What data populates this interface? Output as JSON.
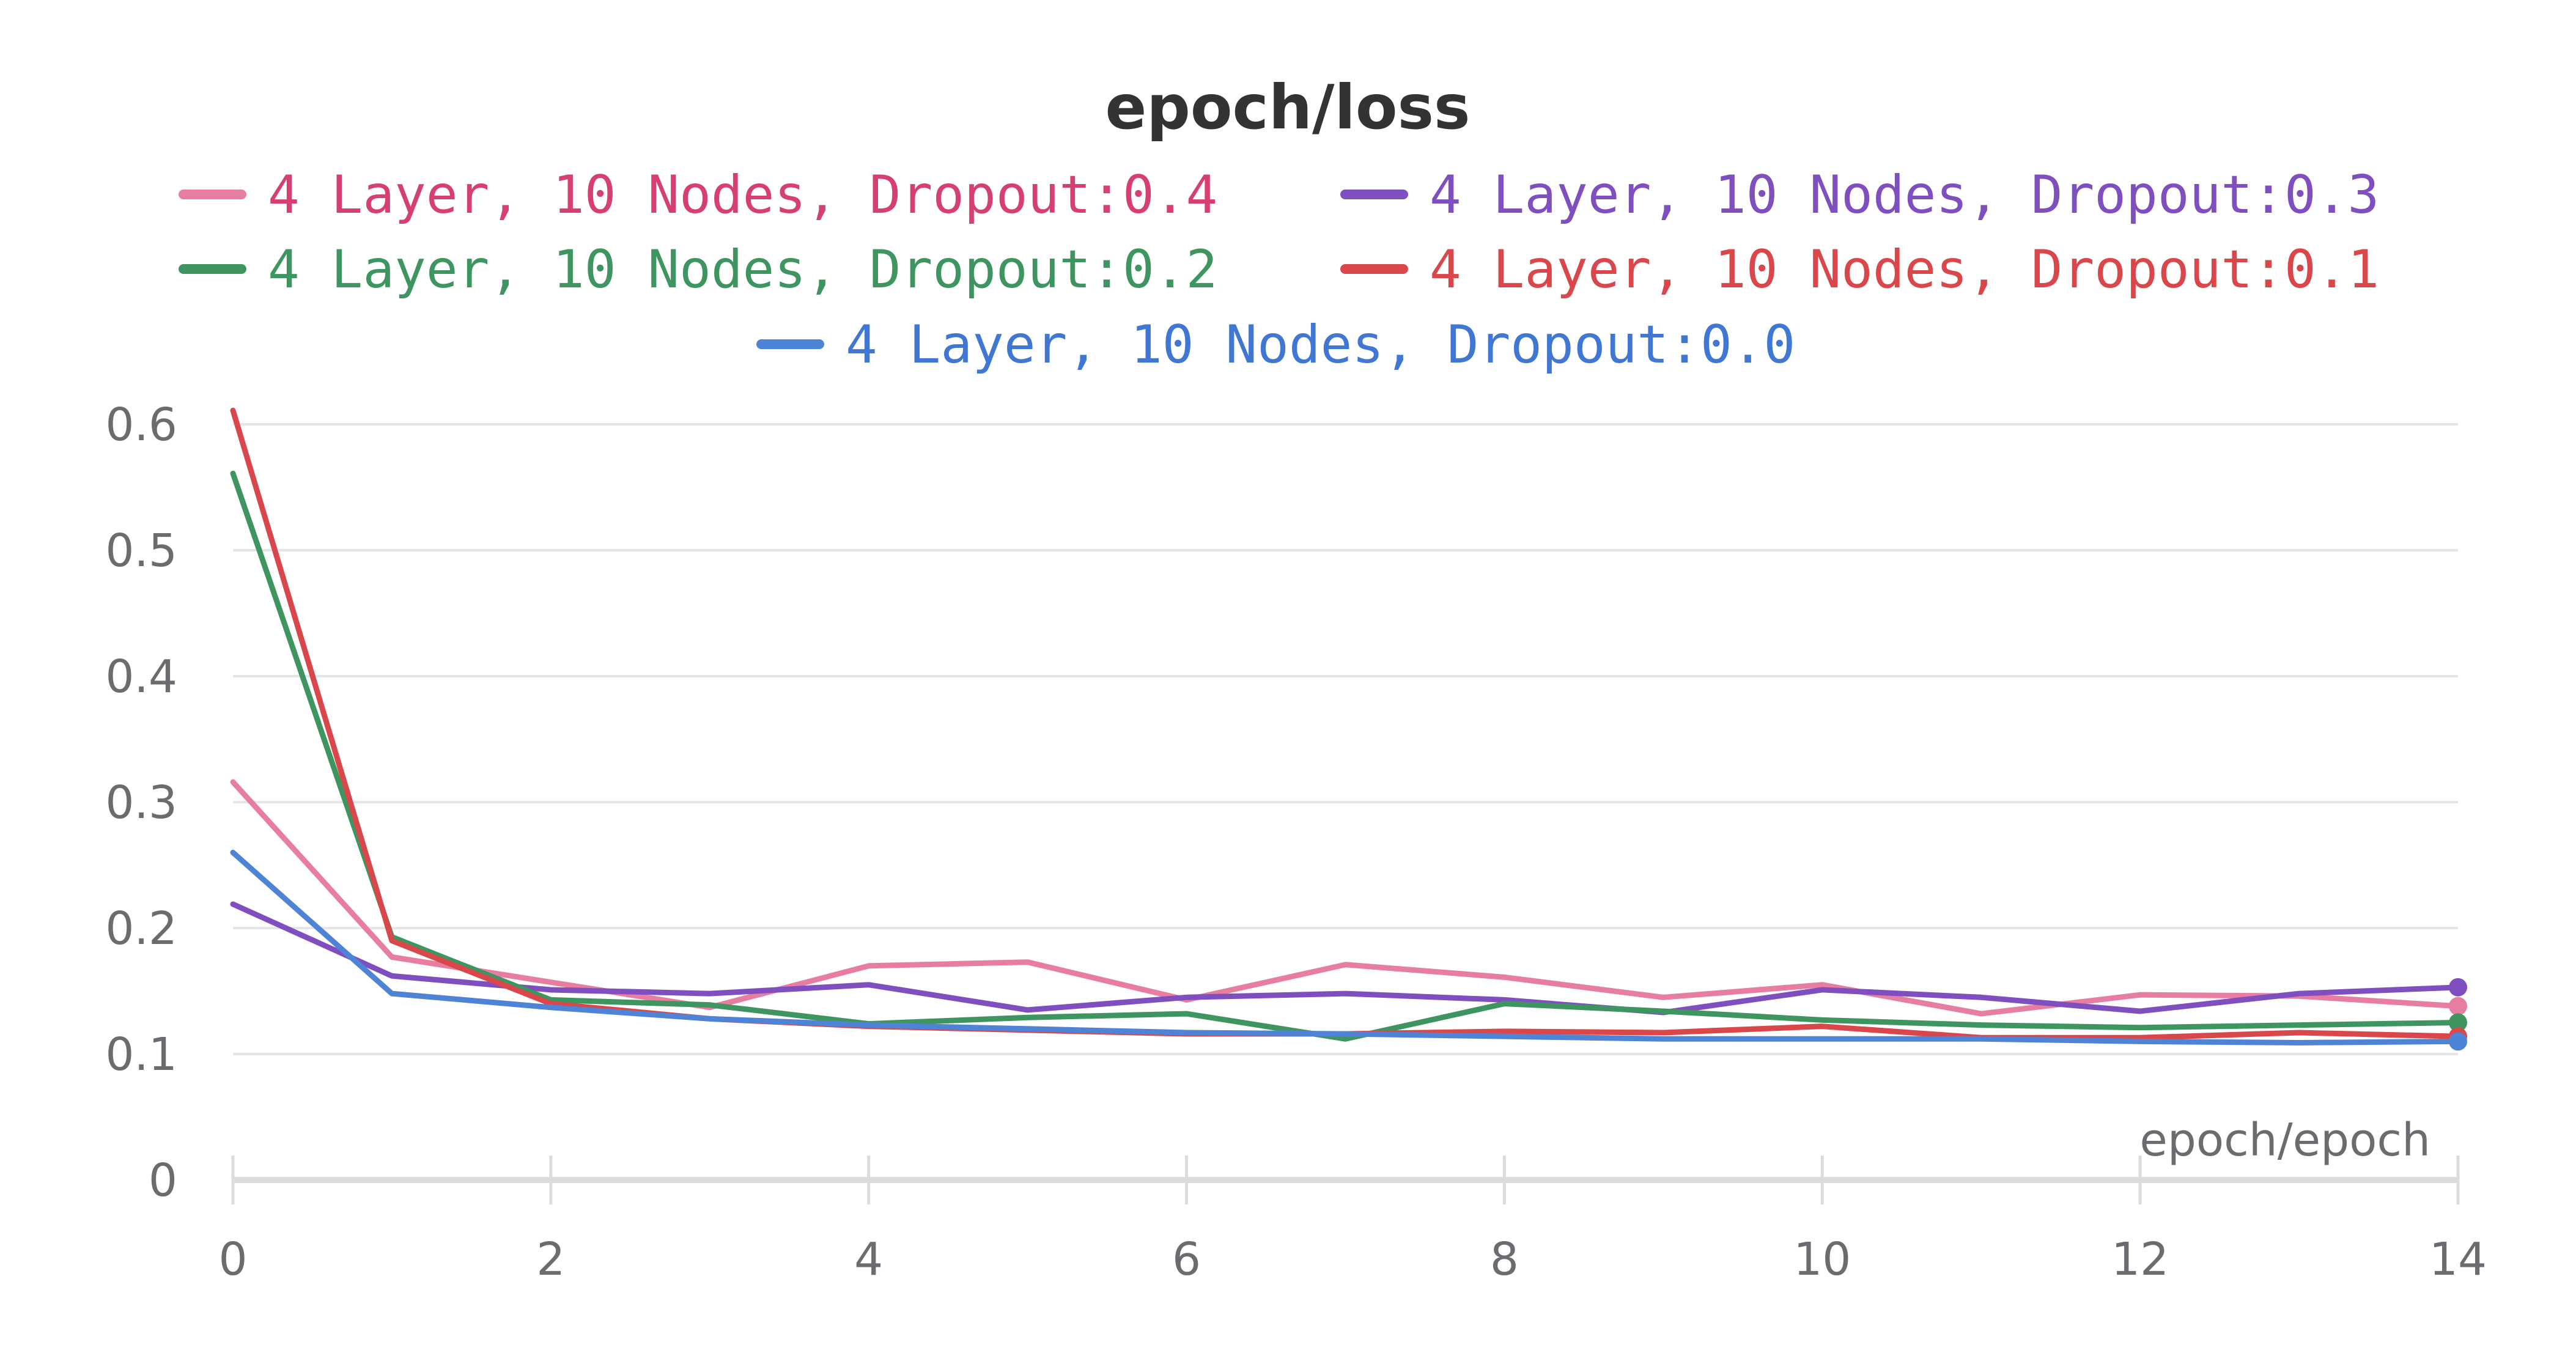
{
  "chart_data": {
    "type": "line",
    "title": "epoch/loss",
    "xlabel": "epoch/epoch",
    "ylabel": "",
    "xlim": [
      0,
      14
    ],
    "ylim": [
      0,
      0.6
    ],
    "x_ticks": [
      0,
      2,
      4,
      6,
      8,
      10,
      12,
      14
    ],
    "y_ticks": [
      0,
      0.1,
      0.2,
      0.3,
      0.4,
      0.5,
      0.6
    ],
    "grid": true,
    "legend_position": "top",
    "x": [
      0,
      1,
      2,
      3,
      4,
      5,
      6,
      7,
      8,
      9,
      10,
      11,
      12,
      13,
      14
    ],
    "series": [
      {
        "name": "4 Layer, 10 Nodes, Dropout:0.4",
        "color": "#e87da2",
        "text_color": "#d63f73",
        "values": [
          0.316,
          0.177,
          0.157,
          0.137,
          0.17,
          0.173,
          0.143,
          0.171,
          0.161,
          0.145,
          0.155,
          0.132,
          0.147,
          0.146,
          0.138
        ]
      },
      {
        "name": "4 Layer, 10 Nodes, Dropout:0.3",
        "color": "#7f4fbf",
        "text_color": "#7f4fbf",
        "values": [
          0.219,
          0.162,
          0.151,
          0.148,
          0.155,
          0.135,
          0.145,
          0.148,
          0.143,
          0.133,
          0.151,
          0.145,
          0.134,
          0.148,
          0.153
        ]
      },
      {
        "name": "4 Layer, 10 Nodes, Dropout:0.2",
        "color": "#3f9560",
        "text_color": "#3f9560",
        "values": [
          0.561,
          0.193,
          0.143,
          0.139,
          0.124,
          0.129,
          0.132,
          0.112,
          0.14,
          0.134,
          0.127,
          0.123,
          0.121,
          0.123,
          0.125
        ]
      },
      {
        "name": "4 Layer, 10 Nodes, Dropout:0.1",
        "color": "#d9474b",
        "text_color": "#d9474b",
        "values": [
          0.611,
          0.19,
          0.14,
          0.128,
          0.122,
          0.119,
          0.116,
          0.116,
          0.118,
          0.117,
          0.122,
          0.113,
          0.113,
          0.117,
          0.114
        ]
      },
      {
        "name": "4 Layer, 10 Nodes, Dropout:0.0",
        "color": "#4f83d6",
        "text_color": "#3f77d3",
        "values": [
          0.26,
          0.148,
          0.137,
          0.128,
          0.123,
          0.12,
          0.117,
          0.116,
          0.114,
          0.112,
          0.112,
          0.112,
          0.11,
          0.109,
          0.11
        ]
      }
    ]
  }
}
